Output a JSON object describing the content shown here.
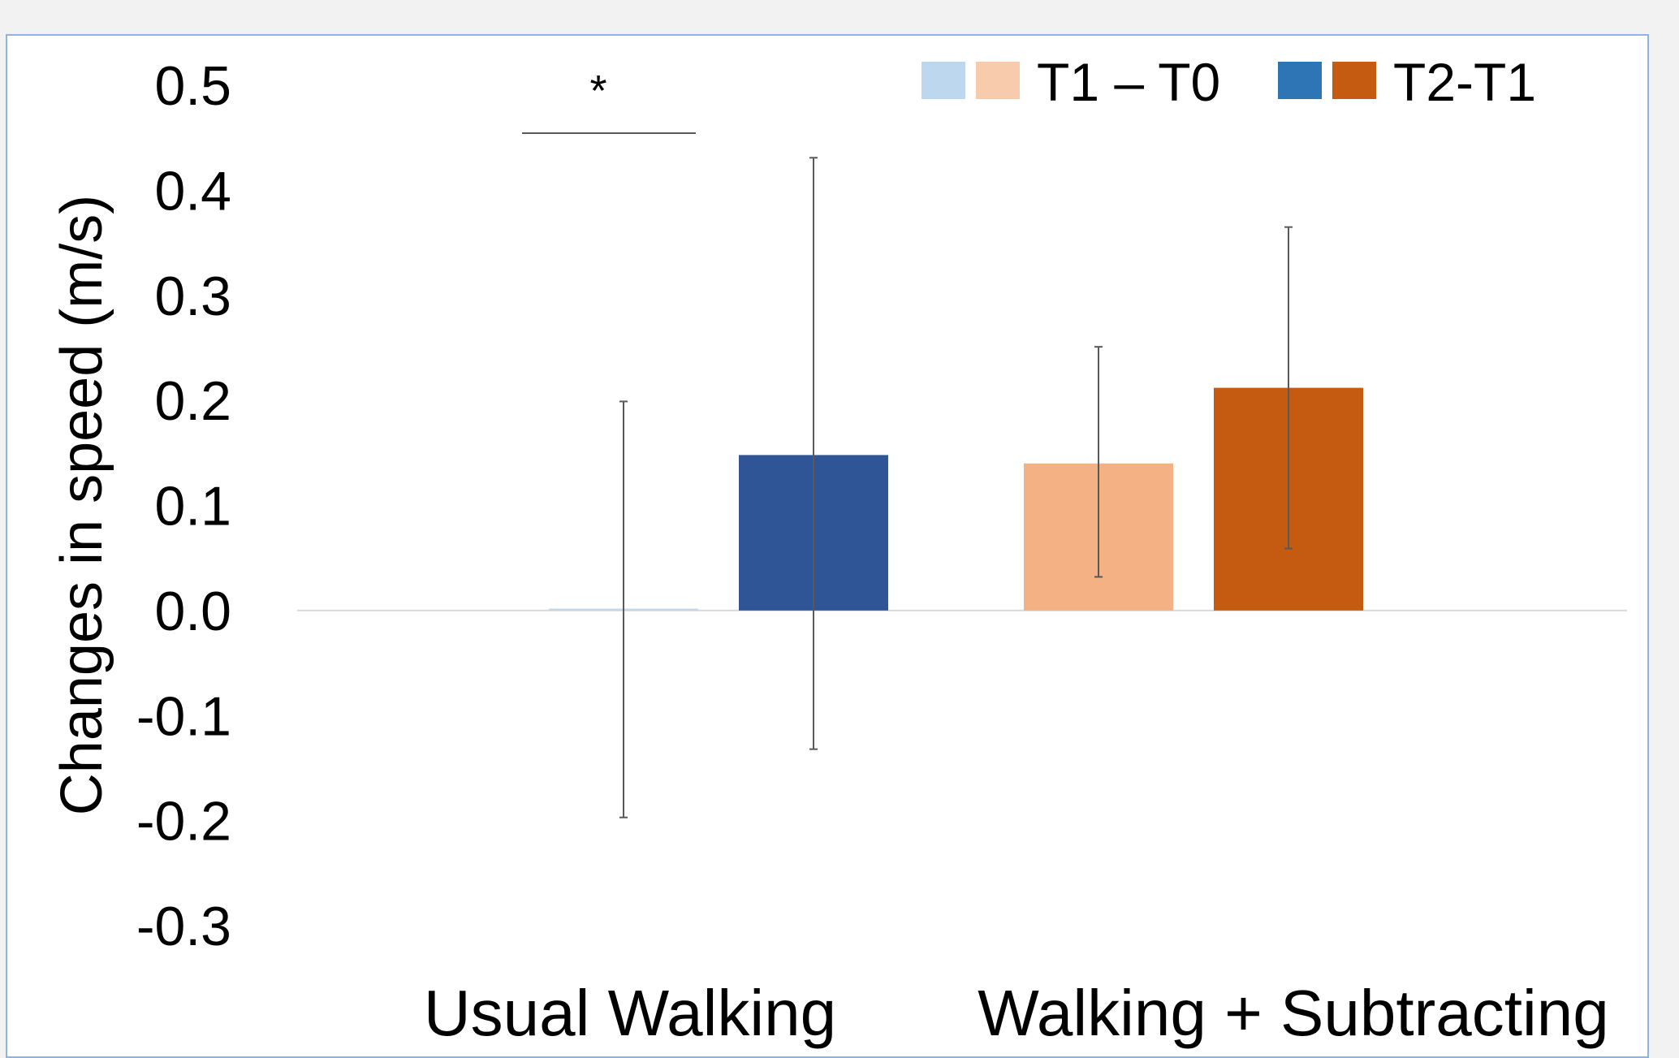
{
  "chart_data": {
    "type": "bar",
    "title": "",
    "ylabel": "Changes in speed (m/s)",
    "xlabel": "",
    "ylim": [
      -0.3,
      0.5
    ],
    "yticks": [
      0.5,
      0.4,
      0.3,
      0.2,
      0.1,
      0.0,
      -0.1,
      -0.2,
      -0.3
    ],
    "ytick_labels": [
      "0.5",
      "0.4",
      "0.3",
      "0.2",
      "0.1",
      "0.0",
      "-0.1",
      "-0.2",
      "-0.3"
    ],
    "grid": false,
    "legend_position": "top-right",
    "categories": [
      "Usual Walking",
      "Walking + Subtracting"
    ],
    "series": [
      {
        "name": "T1 – T0",
        "legend_colors": [
          "#bdd7ee",
          "#f8cbad"
        ],
        "bar_colors": [
          "#bdd7ee",
          "#f4b183"
        ],
        "values": [
          0.001,
          0.14
        ],
        "err_low": [
          -0.197,
          0.032
        ],
        "err_high": [
          0.199,
          0.251
        ]
      },
      {
        "name": "T2-T1",
        "legend_colors": [
          "#2e75b6",
          "#c55a11"
        ],
        "bar_colors": [
          "#2f5597",
          "#c55a11"
        ],
        "values": [
          0.148,
          0.212
        ],
        "err_low": [
          -0.132,
          0.059
        ],
        "err_high": [
          0.431,
          0.365
        ]
      }
    ],
    "annotations": [
      {
        "text": "*",
        "category": "Usual Walking"
      }
    ]
  }
}
